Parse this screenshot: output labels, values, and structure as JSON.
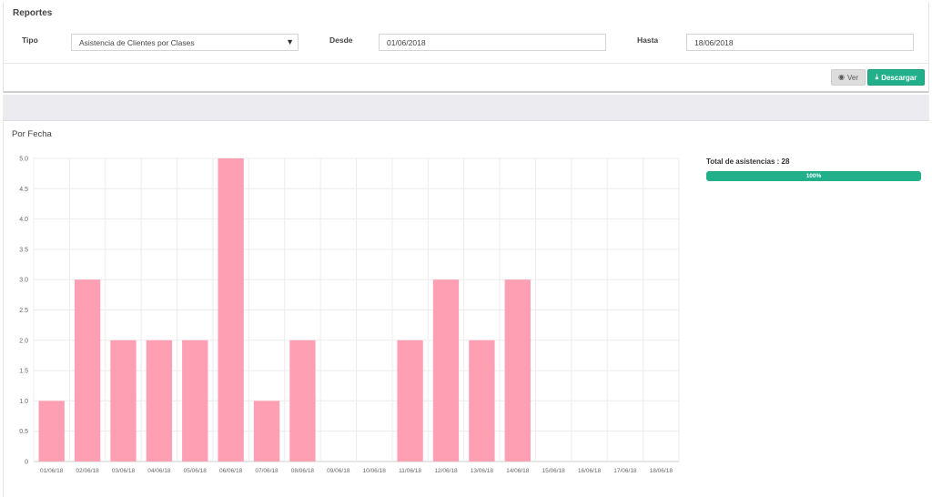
{
  "header": {
    "title": "Reportes"
  },
  "filters": {
    "tipo_label": "Tipo",
    "tipo_value": "Asistencia de Clientes por Clases",
    "desde_label": "Desde",
    "desde_value": "01/06/2018",
    "hasta_label": "Hasta",
    "hasta_value": "18/06/2018"
  },
  "actions": {
    "ver_label": "Ver",
    "descargar_label": "Descargar"
  },
  "icons": {
    "ver": "eye-icon",
    "descargar": "download-icon",
    "select": "caret-down-icon"
  },
  "colors": {
    "bar": "#ff9fb4",
    "accent": "#22b08a"
  },
  "chart_section": {
    "title": "Por Fecha"
  },
  "summary": {
    "total_label": "Total de asistencias : 28",
    "progress_label": "100%",
    "progress_fraction": 1.0
  },
  "chart_data": {
    "type": "bar",
    "categories": [
      "01/06/18",
      "02/06/18",
      "03/06/18",
      "04/06/18",
      "05/06/18",
      "06/06/18",
      "07/06/18",
      "08/06/18",
      "09/06/18",
      "10/06/18",
      "11/06/18",
      "12/06/18",
      "13/06/18",
      "14/06/18",
      "15/06/18",
      "16/06/18",
      "17/06/18",
      "18/06/18"
    ],
    "values": [
      1,
      3,
      2,
      2,
      2,
      5,
      1,
      2,
      0,
      0,
      2,
      3,
      2,
      3,
      0,
      0,
      0,
      0
    ],
    "ylim": [
      0,
      5
    ],
    "yticks": [
      "0",
      "0.5",
      "1.0",
      "1.5",
      "2.0",
      "2.5",
      "3.0",
      "3.5",
      "4.0",
      "4.5",
      "5.0"
    ],
    "grid": true
  }
}
